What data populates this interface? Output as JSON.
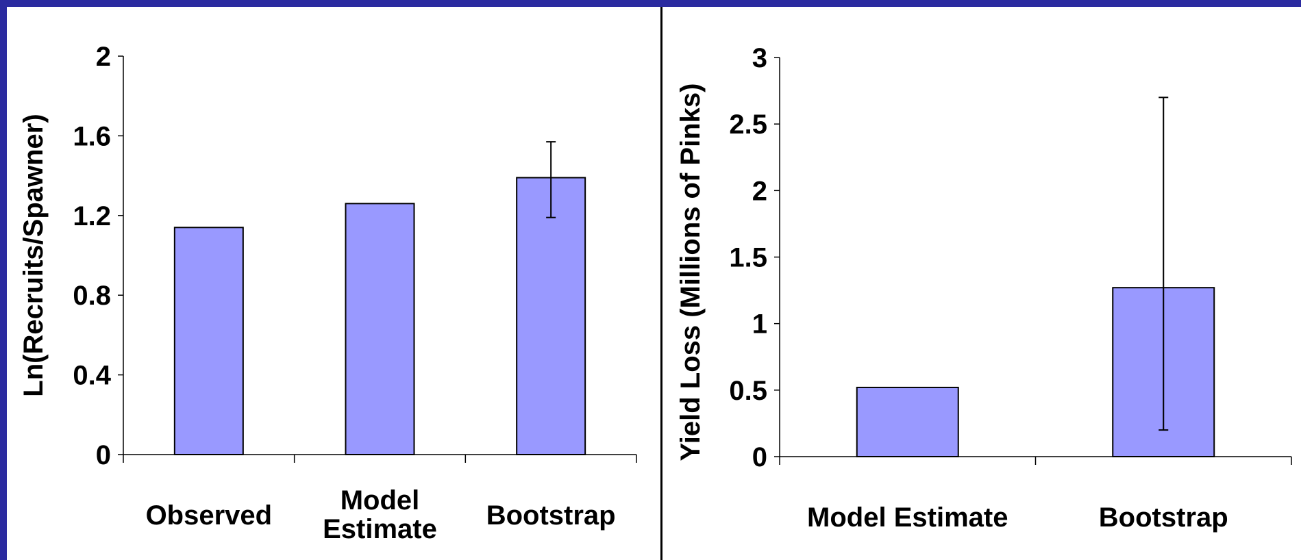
{
  "chart_data": [
    {
      "type": "bar",
      "categories": [
        "Observed",
        "Model Estimate",
        "Bootstrap"
      ],
      "category_lines": [
        [
          "Observed"
        ],
        [
          "Model",
          "Estimate"
        ],
        [
          "Bootstrap"
        ]
      ],
      "values": [
        1.14,
        1.26,
        1.39
      ],
      "error_bars": [
        null,
        null,
        {
          "low": 1.19,
          "high": 1.57
        }
      ],
      "ylabel": "Ln(Recruits/Spawner)",
      "xlabel": "",
      "ylim": [
        0,
        2
      ],
      "yticks": [
        0,
        0.4,
        0.8,
        1.2,
        1.6,
        2
      ],
      "ytick_labels": [
        "0",
        "0.4",
        "0.8",
        "1.2",
        "1.6",
        "2"
      ],
      "bar_color": "#9999ff",
      "grid": false
    },
    {
      "type": "bar",
      "categories": [
        "Model Estimate",
        "Bootstrap"
      ],
      "category_lines": [
        [
          "Model Estimate"
        ],
        [
          "Bootstrap"
        ]
      ],
      "values": [
        0.52,
        1.27
      ],
      "error_bars": [
        null,
        {
          "low": 0.2,
          "high": 2.7
        }
      ],
      "ylabel": "Yield Loss (Millions of Pinks)",
      "xlabel": "",
      "ylim": [
        0,
        3
      ],
      "yticks": [
        0,
        0.5,
        1,
        1.5,
        2,
        2.5,
        3
      ],
      "ytick_labels": [
        "0",
        "0.5",
        "1",
        "1.5",
        "2",
        "2.5",
        "3"
      ],
      "bar_color": "#9999ff",
      "grid": false
    }
  ]
}
